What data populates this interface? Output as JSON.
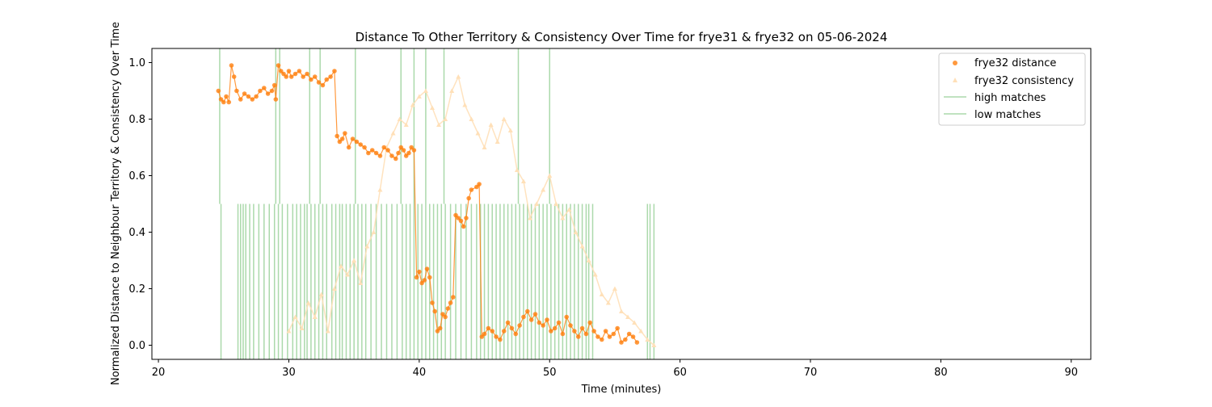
{
  "chart_data": {
    "type": "scatter",
    "title": "Distance To Other Territory & Consistency Over Time for frye31 & frye32 on 05-06-2024",
    "xlabel": "Time (minutes)",
    "ylabel": "Normalized Distance to Neighbour Territory & Consistency Over Time",
    "xlim": [
      19.5,
      91.5
    ],
    "ylim": [
      -0.05,
      1.05
    ],
    "xticks": [
      20,
      30,
      40,
      50,
      60,
      70,
      80,
      90
    ],
    "yticks": [
      0.0,
      0.2,
      0.4,
      0.6,
      0.8,
      1.0
    ],
    "xtick_labels": [
      "20",
      "30",
      "40",
      "50",
      "60",
      "70",
      "80",
      "90"
    ],
    "ytick_labels": [
      "0.0",
      "0.2",
      "0.4",
      "0.6",
      "0.8",
      "1.0"
    ],
    "grid": false,
    "legend_position": "top-right",
    "legend": [
      "frye32 distance",
      "frye32 consistency",
      "high matches",
      "low matches"
    ],
    "colors": {
      "distance": "#ff7f0e",
      "consistency": "#ffe0b8",
      "matches": "#2ca02c"
    },
    "series": [
      {
        "name": "frye32 distance",
        "type": "scatter+line",
        "x": [
          24.6,
          24.8,
          25.0,
          25.2,
          25.4,
          25.6,
          25.8,
          26.0,
          26.3,
          26.6,
          26.9,
          27.2,
          27.5,
          27.8,
          28.1,
          28.4,
          28.7,
          28.9,
          29.0,
          29.2,
          29.4,
          29.6,
          29.8,
          30.0,
          30.2,
          30.5,
          30.8,
          31.1,
          31.4,
          31.7,
          32.0,
          32.3,
          32.6,
          32.9,
          33.2,
          33.5,
          33.7,
          33.9,
          34.1,
          34.3,
          34.6,
          34.9,
          35.2,
          35.5,
          35.8,
          36.1,
          36.4,
          36.7,
          37.0,
          37.3,
          37.6,
          37.9,
          38.2,
          38.4,
          38.6,
          38.8,
          39.0,
          39.2,
          39.4,
          39.6,
          39.8,
          40.0,
          40.2,
          40.4,
          40.6,
          40.8,
          41.0,
          41.2,
          41.4,
          41.6,
          41.8,
          42.0,
          42.2,
          42.4,
          42.6,
          42.8,
          43.0,
          43.2,
          43.4,
          43.6,
          43.8,
          44.0,
          44.4,
          44.6,
          44.8,
          45.0,
          45.3,
          45.6,
          45.9,
          46.2,
          46.5,
          46.8,
          47.1,
          47.4,
          47.7,
          48.0,
          48.3,
          48.6,
          48.9,
          49.2,
          49.5,
          49.8,
          50.1,
          50.4,
          50.7,
          51.0,
          51.3,
          51.6,
          51.9,
          52.2,
          52.5,
          52.8,
          53.1,
          53.4,
          53.7,
          54.0,
          54.3,
          54.6,
          54.9,
          55.2,
          55.5,
          55.8,
          56.1,
          56.4,
          56.7
        ],
        "y": [
          0.9,
          0.87,
          0.86,
          0.88,
          0.86,
          0.99,
          0.95,
          0.9,
          0.87,
          0.89,
          0.88,
          0.87,
          0.88,
          0.9,
          0.91,
          0.89,
          0.9,
          0.92,
          0.87,
          0.99,
          0.97,
          0.96,
          0.95,
          0.97,
          0.95,
          0.96,
          0.97,
          0.95,
          0.96,
          0.94,
          0.95,
          0.93,
          0.92,
          0.94,
          0.95,
          0.97,
          0.74,
          0.72,
          0.73,
          0.75,
          0.7,
          0.73,
          0.72,
          0.71,
          0.7,
          0.68,
          0.69,
          0.68,
          0.67,
          0.7,
          0.69,
          0.67,
          0.66,
          0.68,
          0.7,
          0.69,
          0.67,
          0.68,
          0.7,
          0.69,
          0.24,
          0.26,
          0.22,
          0.23,
          0.27,
          0.24,
          0.15,
          0.12,
          0.05,
          0.06,
          0.11,
          0.1,
          0.13,
          0.15,
          0.17,
          0.46,
          0.45,
          0.44,
          0.42,
          0.45,
          0.52,
          0.55,
          0.56,
          0.57,
          0.03,
          0.04,
          0.06,
          0.05,
          0.03,
          0.02,
          0.05,
          0.08,
          0.06,
          0.04,
          0.07,
          0.1,
          0.12,
          0.09,
          0.11,
          0.08,
          0.07,
          0.09,
          0.05,
          0.06,
          0.08,
          0.04,
          0.1,
          0.07,
          0.05,
          0.03,
          0.06,
          0.04,
          0.08,
          0.05,
          0.03,
          0.02,
          0.05,
          0.03,
          0.04,
          0.06,
          0.01,
          0.02,
          0.04,
          0.03,
          0.01
        ]
      },
      {
        "name": "frye32 consistency",
        "type": "scatter+line",
        "x": [
          30.0,
          30.5,
          31.0,
          31.5,
          32.0,
          32.5,
          33.0,
          33.5,
          34.0,
          34.5,
          35.0,
          35.5,
          36.0,
          36.5,
          37.0,
          37.5,
          38.0,
          38.5,
          39.0,
          39.5,
          40.0,
          40.5,
          41.0,
          41.5,
          42.0,
          42.5,
          43.0,
          43.5,
          44.0,
          44.5,
          45.0,
          45.5,
          46.0,
          46.5,
          47.0,
          47.5,
          48.0,
          48.5,
          49.0,
          49.5,
          50.0,
          50.5,
          51.0,
          51.5,
          52.0,
          52.5,
          53.0,
          53.5,
          54.0,
          54.5,
          55.0,
          55.5,
          56.0,
          56.5,
          57.0,
          57.5,
          58.0
        ],
        "y": [
          0.05,
          0.1,
          0.06,
          0.15,
          0.1,
          0.18,
          0.05,
          0.2,
          0.28,
          0.25,
          0.3,
          0.22,
          0.35,
          0.4,
          0.55,
          0.7,
          0.75,
          0.8,
          0.78,
          0.85,
          0.88,
          0.9,
          0.84,
          0.78,
          0.8,
          0.9,
          0.95,
          0.85,
          0.8,
          0.75,
          0.7,
          0.78,
          0.72,
          0.8,
          0.76,
          0.62,
          0.58,
          0.45,
          0.5,
          0.55,
          0.6,
          0.5,
          0.45,
          0.48,
          0.4,
          0.35,
          0.3,
          0.25,
          0.18,
          0.15,
          0.2,
          0.12,
          0.1,
          0.08,
          0.05,
          0.02,
          0.0
        ]
      }
    ],
    "high_matches": [
      24.7,
      29.0,
      29.3,
      31.6,
      32.4,
      35.1,
      38.6,
      39.6,
      40.5,
      41.9,
      47.6,
      50.0
    ],
    "high_matches_band": [
      0.5,
      1.05
    ],
    "low_matches": [
      24.8,
      26.1,
      26.3,
      26.5,
      26.7,
      27.0,
      27.3,
      27.7,
      28.1,
      28.5,
      28.9,
      29.2,
      29.5,
      29.9,
      30.3,
      30.6,
      30.9,
      31.2,
      31.4,
      31.7,
      32.0,
      32.3,
      32.6,
      32.9,
      33.3,
      33.6,
      33.9,
      34.1,
      34.4,
      34.7,
      35.0,
      35.3,
      35.6,
      35.9,
      36.3,
      36.7,
      37.1,
      37.5,
      37.9,
      38.3,
      38.7,
      39.0,
      39.3,
      39.6,
      39.9,
      40.2,
      40.5,
      40.8,
      41.1,
      41.4,
      41.7,
      42.0,
      42.4,
      42.8,
      43.2,
      43.6,
      44.0,
      44.4,
      44.7,
      45.0,
      45.3,
      45.6,
      45.9,
      46.2,
      46.5,
      46.8,
      47.1,
      47.4,
      47.7,
      48.0,
      48.3,
      48.6,
      48.9,
      49.2,
      49.5,
      49.8,
      50.1,
      50.4,
      50.7,
      51.0,
      51.3,
      51.6,
      51.9,
      52.2,
      52.5,
      52.8,
      53.0,
      53.3,
      57.5,
      57.7,
      58.0
    ],
    "low_matches_band": [
      -0.05,
      0.5
    ]
  }
}
